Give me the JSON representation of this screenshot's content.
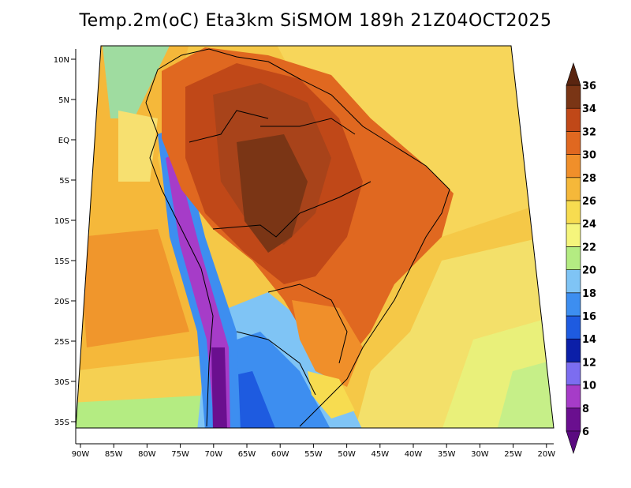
{
  "title": "Temp.2m(oC) Eta3km SiSMOM 189h 21Z04OCT2025",
  "lat_ticks": [
    "10N",
    "5N",
    "EQ",
    "5S",
    "10S",
    "15S",
    "20S",
    "25S",
    "30S",
    "35S"
  ],
  "lon_ticks": [
    "90W",
    "85W",
    "80W",
    "75W",
    "70W",
    "65W",
    "60W",
    "55W",
    "50W",
    "45W",
    "40W",
    "35W",
    "30W",
    "25W",
    "20W"
  ],
  "colorbar": {
    "labels": [
      "6",
      "8",
      "10",
      "12",
      "14",
      "16",
      "18",
      "20",
      "22",
      "24",
      "26",
      "28",
      "30",
      "32",
      "34",
      "36"
    ],
    "colors": [
      "#6a0f8f",
      "#a63cc8",
      "#7c6df0",
      "#0b1fa8",
      "#1e5be0",
      "#3d8ef0",
      "#7fc4f5",
      "#b4ec82",
      "#f5f57c",
      "#f7dc50",
      "#f5b83a",
      "#f08f2a",
      "#e06820",
      "#c04818",
      "#7a3515"
    ],
    "low_color": "#5a0a80",
    "high_color": "#5a2510"
  }
}
